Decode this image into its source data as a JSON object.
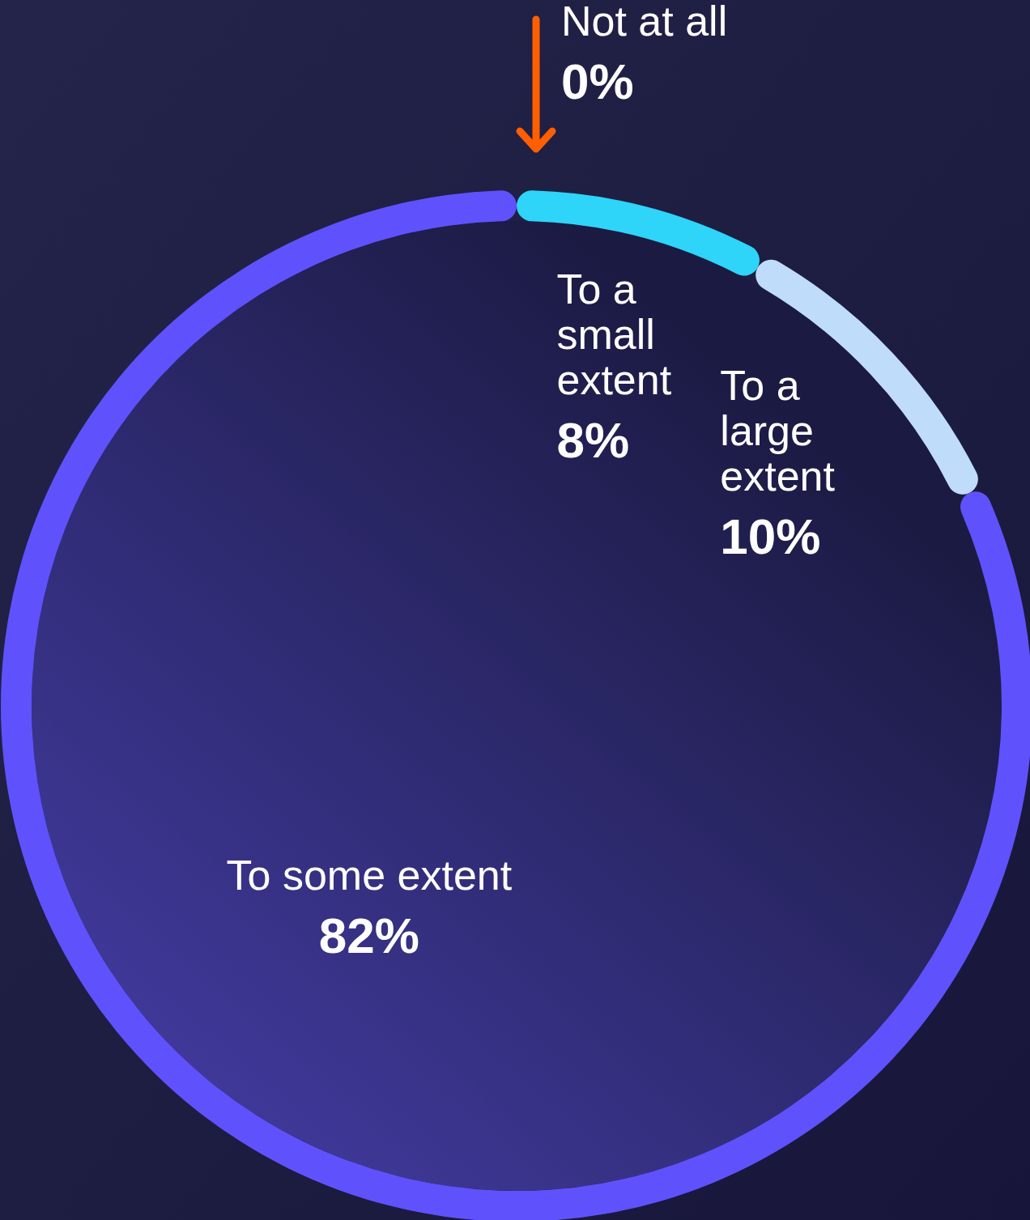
{
  "chart_data": {
    "type": "donut",
    "categories": [
      "Not at all",
      "To a small extent",
      "To a large extent",
      "To some extent"
    ],
    "values": [
      0,
      8,
      10,
      82
    ],
    "colors": [
      "#ff5f00",
      "#2fd4f9",
      "#c0dcfb",
      "#5f52fd"
    ],
    "value_labels": [
      "0%",
      "8%",
      "10%",
      "82%"
    ]
  }
}
